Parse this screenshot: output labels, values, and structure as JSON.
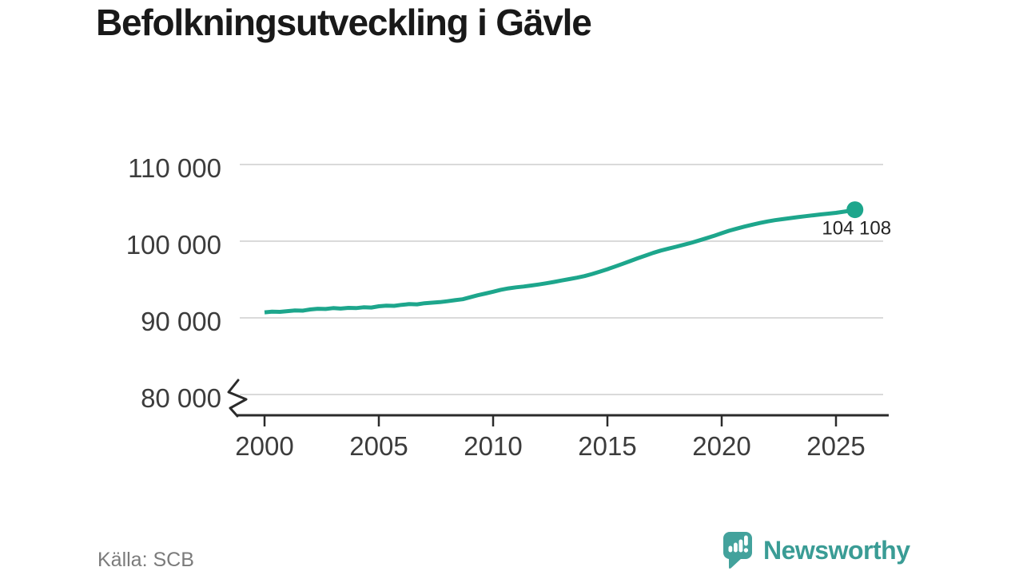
{
  "title": "Befolkningsutveckling i Gävle",
  "footer": {
    "source": "Källa: SCB",
    "brand": "Newsworthy"
  },
  "colors": {
    "line": "#1da68c",
    "grid": "#dadada",
    "axis": "#2b2b2b",
    "tick_text": "#3c3c3c",
    "title_text": "#191919",
    "source_text": "#7b7b7b",
    "brand": "#3a9c95",
    "end_label_text": "#242424"
  },
  "chart_data": {
    "type": "line",
    "title": "Befolkningsutveckling i Gävle",
    "xlabel": "",
    "ylabel": "",
    "grid": "horizontal-only",
    "legend": "none",
    "xlim": [
      1998.9,
      2027.2
    ],
    "ylim": [
      80000,
      110000
    ],
    "y_axis_break": true,
    "x_ticks": [
      {
        "value": 2000,
        "label": "2000"
      },
      {
        "value": 2005,
        "label": "2005"
      },
      {
        "value": 2010,
        "label": "2010"
      },
      {
        "value": 2015,
        "label": "2015"
      },
      {
        "value": 2020,
        "label": "2020"
      },
      {
        "value": 2025,
        "label": "2025"
      }
    ],
    "y_ticks": [
      {
        "value": 110000,
        "label": "110 000"
      },
      {
        "value": 100000,
        "label": "100 000"
      },
      {
        "value": 90000,
        "label": "90 000"
      },
      {
        "value": 80000,
        "label": "80 000"
      }
    ],
    "end_label": "104 108",
    "latest_value": 104108,
    "series": [
      {
        "name": "Befolkning i Gävle",
        "points": [
          [
            2000.0,
            90720
          ],
          [
            2000.33,
            90800
          ],
          [
            2000.67,
            90780
          ],
          [
            2001.0,
            90880
          ],
          [
            2001.33,
            90970
          ],
          [
            2001.67,
            90940
          ],
          [
            2002.0,
            91090
          ],
          [
            2002.33,
            91190
          ],
          [
            2002.67,
            91160
          ],
          [
            2003.0,
            91270
          ],
          [
            2003.33,
            91210
          ],
          [
            2003.67,
            91300
          ],
          [
            2004.0,
            91270
          ],
          [
            2004.33,
            91370
          ],
          [
            2004.67,
            91340
          ],
          [
            2005.0,
            91510
          ],
          [
            2005.33,
            91590
          ],
          [
            2005.67,
            91560
          ],
          [
            2006.0,
            91700
          ],
          [
            2006.33,
            91790
          ],
          [
            2006.67,
            91760
          ],
          [
            2007.0,
            91910
          ],
          [
            2007.33,
            91980
          ],
          [
            2007.67,
            92050
          ],
          [
            2008.0,
            92170
          ],
          [
            2008.33,
            92300
          ],
          [
            2008.67,
            92430
          ],
          [
            2009.0,
            92690
          ],
          [
            2009.33,
            92950
          ],
          [
            2009.67,
            93180
          ],
          [
            2010.0,
            93410
          ],
          [
            2010.33,
            93660
          ],
          [
            2010.67,
            93840
          ],
          [
            2011.0,
            93980
          ],
          [
            2011.33,
            94080
          ],
          [
            2011.67,
            94220
          ],
          [
            2012.0,
            94350
          ],
          [
            2012.33,
            94510
          ],
          [
            2012.67,
            94690
          ],
          [
            2013.0,
            94870
          ],
          [
            2013.33,
            95050
          ],
          [
            2013.67,
            95240
          ],
          [
            2014.0,
            95450
          ],
          [
            2014.33,
            95720
          ],
          [
            2014.67,
            96030
          ],
          [
            2015.0,
            96340
          ],
          [
            2015.33,
            96690
          ],
          [
            2015.67,
            97050
          ],
          [
            2016.0,
            97410
          ],
          [
            2016.33,
            97770
          ],
          [
            2016.67,
            98130
          ],
          [
            2017.0,
            98470
          ],
          [
            2017.33,
            98770
          ],
          [
            2017.67,
            99030
          ],
          [
            2018.0,
            99270
          ],
          [
            2018.33,
            99520
          ],
          [
            2018.67,
            99790
          ],
          [
            2019.0,
            100080
          ],
          [
            2019.33,
            100390
          ],
          [
            2019.67,
            100710
          ],
          [
            2020.0,
            101040
          ],
          [
            2020.33,
            101360
          ],
          [
            2020.67,
            101650
          ],
          [
            2021.0,
            101910
          ],
          [
            2021.33,
            102150
          ],
          [
            2021.67,
            102370
          ],
          [
            2022.0,
            102570
          ],
          [
            2022.33,
            102740
          ],
          [
            2022.67,
            102880
          ],
          [
            2023.0,
            103010
          ],
          [
            2023.33,
            103140
          ],
          [
            2023.67,
            103260
          ],
          [
            2024.0,
            103380
          ],
          [
            2024.33,
            103490
          ],
          [
            2024.67,
            103590
          ],
          [
            2025.0,
            103700
          ],
          [
            2025.33,
            103840
          ],
          [
            2025.67,
            104000
          ],
          [
            2025.83,
            104108
          ]
        ]
      }
    ]
  }
}
